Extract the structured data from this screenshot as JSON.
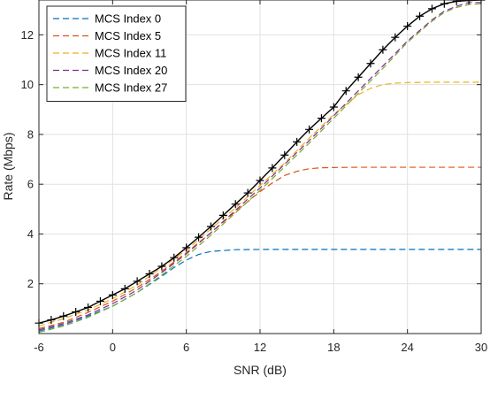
{
  "chart_data": {
    "type": "line",
    "title": "",
    "xlabel": "SNR (dB)",
    "ylabel": "Rate (Mbps)",
    "xlim": [
      -6,
      30
    ],
    "ylim": [
      0,
      13.4
    ],
    "xticks": [
      -6,
      0,
      6,
      12,
      18,
      24,
      30
    ],
    "yticks": [
      2,
      4,
      6,
      8,
      10,
      12
    ],
    "grid": true,
    "legend_position": "top-left",
    "series": [
      {
        "name": "MCS Index 0",
        "color": "#0072BD",
        "style": "dashed",
        "x": [
          -6,
          -4,
          -2,
          0,
          2,
          4,
          5,
          6,
          7,
          8,
          10,
          12,
          15,
          18,
          24,
          30
        ],
        "y": [
          0.1,
          0.35,
          0.7,
          1.1,
          1.65,
          2.3,
          2.65,
          2.95,
          3.18,
          3.3,
          3.37,
          3.38,
          3.38,
          3.38,
          3.38,
          3.38
        ]
      },
      {
        "name": "MCS Index 5",
        "color": "#D95319",
        "style": "dashed",
        "x": [
          -6,
          -4,
          -2,
          0,
          2,
          4,
          6,
          8,
          10,
          12,
          13,
          14,
          15,
          16,
          17,
          18,
          20,
          24,
          30
        ],
        "y": [
          0.2,
          0.45,
          0.85,
          1.3,
          1.85,
          2.5,
          3.25,
          4.05,
          4.9,
          5.7,
          6.05,
          6.35,
          6.52,
          6.62,
          6.66,
          6.67,
          6.68,
          6.68,
          6.68
        ]
      },
      {
        "name": "MCS Index 11",
        "color": "#EDB120",
        "style": "dashed",
        "x": [
          -6,
          -4,
          -2,
          0,
          2,
          4,
          6,
          8,
          10,
          12,
          14,
          16,
          18,
          20,
          21,
          22,
          23,
          24,
          26,
          30
        ],
        "y": [
          0.3,
          0.6,
          0.95,
          1.4,
          1.95,
          2.65,
          3.35,
          4.2,
          5.05,
          5.95,
          6.85,
          7.85,
          8.8,
          9.6,
          9.85,
          10.0,
          10.06,
          10.08,
          10.1,
          10.1
        ]
      },
      {
        "name": "MCS Index 20",
        "color": "#7E2F8E",
        "style": "dashed",
        "x": [
          -6,
          -4,
          -2,
          0,
          2,
          4,
          6,
          8,
          10,
          12,
          14,
          16,
          18,
          20,
          22,
          24,
          26,
          27,
          28,
          29,
          30
        ],
        "y": [
          0.15,
          0.4,
          0.75,
          1.2,
          1.75,
          2.45,
          3.2,
          4.05,
          4.95,
          5.85,
          6.8,
          7.75,
          8.75,
          9.75,
          10.75,
          11.75,
          12.6,
          12.95,
          13.15,
          13.3,
          13.3
        ]
      },
      {
        "name": "MCS Index 27",
        "color": "#77AC30",
        "style": "dashed",
        "x": [
          -6,
          -4,
          -2,
          0,
          2,
          4,
          6,
          8,
          10,
          12,
          14,
          16,
          18,
          20,
          22,
          24,
          26,
          27,
          28,
          29,
          30
        ],
        "y": [
          0.05,
          0.3,
          0.65,
          1.1,
          1.65,
          2.35,
          3.1,
          3.95,
          4.85,
          5.75,
          6.7,
          7.65,
          8.65,
          9.65,
          10.65,
          11.7,
          12.55,
          12.9,
          13.1,
          13.22,
          13.25
        ]
      },
      {
        "name": "",
        "color": "#000000",
        "style": "solid",
        "marker": "+",
        "x": [
          -6,
          -5,
          -4,
          -3,
          -2,
          -1,
          0,
          1,
          2,
          3,
          4,
          5,
          6,
          7,
          8,
          9,
          10,
          11,
          12,
          13,
          14,
          15,
          16,
          17,
          18,
          19,
          20,
          21,
          22,
          23,
          24,
          25,
          26,
          27,
          28,
          29,
          30
        ],
        "y": [
          0.42,
          0.55,
          0.7,
          0.87,
          1.05,
          1.3,
          1.55,
          1.8,
          2.1,
          2.4,
          2.7,
          3.05,
          3.45,
          3.87,
          4.3,
          4.75,
          5.2,
          5.65,
          6.15,
          6.65,
          7.17,
          7.7,
          8.2,
          8.65,
          9.1,
          9.75,
          10.3,
          10.85,
          11.4,
          11.9,
          12.35,
          12.75,
          13.05,
          13.25,
          13.35,
          13.38,
          13.4
        ]
      }
    ]
  }
}
